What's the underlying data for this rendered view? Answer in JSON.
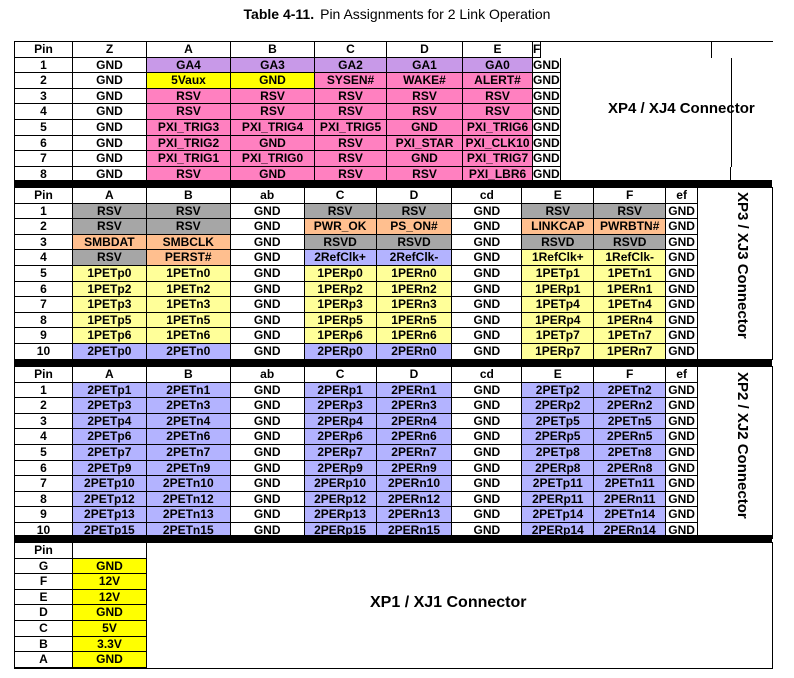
{
  "caption": {
    "label": "Table 4-11.",
    "title": "Pin Assignments for 2 Link Operation"
  },
  "colors": {
    "pink": "#ff80c0",
    "violet": "#c899e8",
    "yellow": "#ffff00",
    "gray": "#a6a6a6",
    "orange": "#ffbf8f",
    "light_yellow": "#ffff99",
    "blue": "#b3b3ff"
  },
  "xp4": {
    "connector_label": "XP4 / XJ4 Connector",
    "headers": [
      "Pin",
      "Z",
      "A",
      "B",
      "C",
      "D",
      "E",
      "F"
    ],
    "rows": [
      {
        "pin": "1",
        "cells": [
          "GND",
          "GA4",
          "GA3",
          "GA2",
          "GA1",
          "GA0",
          "GND"
        ]
      },
      {
        "pin": "2",
        "cells": [
          "GND",
          "5Vaux",
          "GND",
          "SYSEN#",
          "WAKE#",
          "ALERT#",
          "GND"
        ]
      },
      {
        "pin": "3",
        "cells": [
          "GND",
          "RSV",
          "RSV",
          "RSV",
          "RSV",
          "RSV",
          "GND"
        ]
      },
      {
        "pin": "4",
        "cells": [
          "GND",
          "RSV",
          "RSV",
          "RSV",
          "RSV",
          "RSV",
          "GND"
        ]
      },
      {
        "pin": "5",
        "cells": [
          "GND",
          "PXI_TRIG3",
          "PXI_TRIG4",
          "PXI_TRIG5",
          "GND",
          "PXI_TRIG6",
          "GND"
        ]
      },
      {
        "pin": "6",
        "cells": [
          "GND",
          "PXI_TRIG2",
          "GND",
          "RSV",
          "PXI_STAR",
          "PXI_CLK10",
          "GND"
        ]
      },
      {
        "pin": "7",
        "cells": [
          "GND",
          "PXI_TRIG1",
          "PXI_TRIG0",
          "RSV",
          "GND",
          "PXI_TRIG7",
          "GND"
        ]
      },
      {
        "pin": "8",
        "cells": [
          "GND",
          "RSV",
          "GND",
          "RSV",
          "RSV",
          "PXI_LBR6",
          "GND"
        ]
      }
    ]
  },
  "xp3": {
    "connector_label": "XP3 / XJ3 Connector",
    "headers": [
      "Pin",
      "A",
      "B",
      "ab",
      "C",
      "D",
      "cd",
      "E",
      "F",
      "ef"
    ],
    "rows": [
      {
        "pin": "1",
        "cells": [
          "RSV",
          "RSV",
          "GND",
          "RSV",
          "RSV",
          "GND",
          "RSV",
          "RSV",
          "GND"
        ]
      },
      {
        "pin": "2",
        "cells": [
          "RSV",
          "RSV",
          "GND",
          "PWR_OK",
          "PS_ON#",
          "GND",
          "LINKCAP",
          "PWRBTN#",
          "GND"
        ]
      },
      {
        "pin": "3",
        "cells": [
          "SMBDAT",
          "SMBCLK",
          "GND",
          "RSVD",
          "RSVD",
          "GND",
          "RSVD",
          "RSVD",
          "GND"
        ]
      },
      {
        "pin": "4",
        "cells": [
          "RSV",
          "PERST#",
          "GND",
          "2RefClk+",
          "2RefClk-",
          "GND",
          "1RefClk+",
          "1RefClk-",
          "GND"
        ]
      },
      {
        "pin": "5",
        "cells": [
          "1PETp0",
          "1PETn0",
          "GND",
          "1PERp0",
          "1PERn0",
          "GND",
          "1PETp1",
          "1PETn1",
          "GND"
        ]
      },
      {
        "pin": "6",
        "cells": [
          "1PETp2",
          "1PETn2",
          "GND",
          "1PERp2",
          "1PERn2",
          "GND",
          "1PERp1",
          "1PERn1",
          "GND"
        ]
      },
      {
        "pin": "7",
        "cells": [
          "1PETp3",
          "1PETn3",
          "GND",
          "1PERp3",
          "1PERn3",
          "GND",
          "1PETp4",
          "1PETn4",
          "GND"
        ]
      },
      {
        "pin": "8",
        "cells": [
          "1PETp5",
          "1PETn5",
          "GND",
          "1PERp5",
          "1PERn5",
          "GND",
          "1PERp4",
          "1PERn4",
          "GND"
        ]
      },
      {
        "pin": "9",
        "cells": [
          "1PETp6",
          "1PETn6",
          "GND",
          "1PERp6",
          "1PERn6",
          "GND",
          "1PETp7",
          "1PETn7",
          "GND"
        ]
      },
      {
        "pin": "10",
        "cells": [
          "2PETp0",
          "2PETn0",
          "GND",
          "2PERp0",
          "2PERn0",
          "GND",
          "1PERp7",
          "1PERn7",
          "GND"
        ]
      }
    ]
  },
  "xp2": {
    "connector_label": "XP2 / XJ2 Connector",
    "headers": [
      "Pin",
      "A",
      "B",
      "ab",
      "C",
      "D",
      "cd",
      "E",
      "F",
      "ef"
    ],
    "rows": [
      {
        "pin": "1",
        "cells": [
          "2PETp1",
          "2PETn1",
          "GND",
          "2PERp1",
          "2PERn1",
          "GND",
          "2PETp2",
          "2PETn2",
          "GND"
        ]
      },
      {
        "pin": "2",
        "cells": [
          "2PETp3",
          "2PETn3",
          "GND",
          "2PERp3",
          "2PERn3",
          "GND",
          "2PERp2",
          "2PERn2",
          "GND"
        ]
      },
      {
        "pin": "3",
        "cells": [
          "2PETp4",
          "2PETn4",
          "GND",
          "2PERp4",
          "2PERn4",
          "GND",
          "2PETp5",
          "2PETn5",
          "GND"
        ]
      },
      {
        "pin": "4",
        "cells": [
          "2PETp6",
          "2PETn6",
          "GND",
          "2PERp6",
          "2PERn6",
          "GND",
          "2PERp5",
          "2PERn5",
          "GND"
        ]
      },
      {
        "pin": "5",
        "cells": [
          "2PETp7",
          "2PETn7",
          "GND",
          "2PERp7",
          "2PERn7",
          "GND",
          "2PETp8",
          "2PETn8",
          "GND"
        ]
      },
      {
        "pin": "6",
        "cells": [
          "2PETp9",
          "2PETn9",
          "GND",
          "2PERp9",
          "2PERn9",
          "GND",
          "2PERp8",
          "2PERn8",
          "GND"
        ]
      },
      {
        "pin": "7",
        "cells": [
          "2PETp10",
          "2PETn10",
          "GND",
          "2PERp10",
          "2PERn10",
          "GND",
          "2PETp11",
          "2PETn11",
          "GND"
        ]
      },
      {
        "pin": "8",
        "cells": [
          "2PETp12",
          "2PETn12",
          "GND",
          "2PERp12",
          "2PERn12",
          "GND",
          "2PERp11",
          "2PERn11",
          "GND"
        ]
      },
      {
        "pin": "9",
        "cells": [
          "2PETp13",
          "2PETn13",
          "GND",
          "2PERp13",
          "2PERn13",
          "GND",
          "2PETp14",
          "2PETn14",
          "GND"
        ]
      },
      {
        "pin": "10",
        "cells": [
          "2PETp15",
          "2PETn15",
          "GND",
          "2PERp15",
          "2PERn15",
          "GND",
          "2PERp14",
          "2PERn14",
          "GND"
        ]
      }
    ]
  },
  "xp1": {
    "connector_label": "XP1 / XJ1 Connector",
    "header": "Pin",
    "rows": [
      {
        "pin": "G",
        "value": "GND"
      },
      {
        "pin": "F",
        "value": "12V"
      },
      {
        "pin": "E",
        "value": "12V"
      },
      {
        "pin": "D",
        "value": "GND"
      },
      {
        "pin": "C",
        "value": "5V"
      },
      {
        "pin": "B",
        "value": "3.3V"
      },
      {
        "pin": "A",
        "value": "GND"
      }
    ]
  }
}
